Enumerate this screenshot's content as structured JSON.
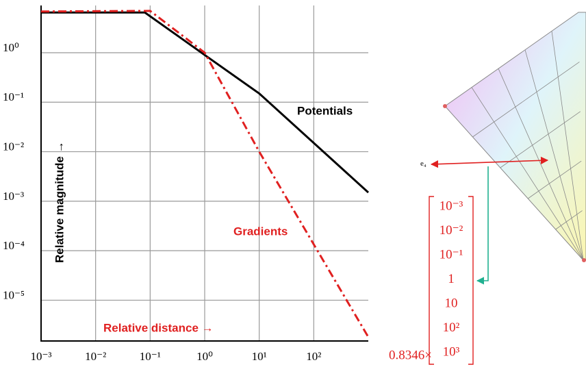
{
  "chart_data": {
    "type": "line",
    "xlabel": "Relative distance →",
    "ylabel": "Relative magnitude →",
    "xscale": "log",
    "yscale": "log",
    "grid": true,
    "xlim": [
      0.001,
      1000
    ],
    "ylim": [
      1.5e-06,
      9
    ],
    "xticks": [
      {
        "value": 0.001,
        "label": "10⁻³"
      },
      {
        "value": 0.01,
        "label": "10⁻²"
      },
      {
        "value": 0.1,
        "label": "10⁻¹"
      },
      {
        "value": 1,
        "label": "10⁰"
      },
      {
        "value": 10,
        "label": "10¹"
      },
      {
        "value": 100,
        "label": "10²"
      }
    ],
    "yticks": [
      {
        "value": 1,
        "label": "10⁰"
      },
      {
        "value": 0.1,
        "label": "10⁻¹"
      },
      {
        "value": 0.01,
        "label": "10⁻²"
      },
      {
        "value": 0.001,
        "label": "10⁻³"
      },
      {
        "value": 0.0001,
        "label": "10⁻⁴"
      },
      {
        "value": 1e-05,
        "label": "10⁻⁵"
      }
    ],
    "series": [
      {
        "name": "Potentials",
        "color": "#000000",
        "dash": "solid",
        "x": [
          0.001,
          0.08,
          1,
          10,
          1000
        ],
        "values": [
          6.5,
          6.5,
          0.9,
          0.15,
          0.0015
        ]
      },
      {
        "name": "Gradients",
        "color": "#e02020",
        "dash": "dashdot",
        "x": [
          0.001,
          0.1,
          1,
          10,
          1000
        ],
        "values": [
          6.8,
          7,
          1,
          0.01,
          1.8e-06
        ]
      }
    ]
  },
  "diagram": {
    "point_label": "e₄",
    "scale_label": "0.8346×",
    "matrix": [
      "10⁻³",
      "10⁻²",
      "10⁻¹",
      "1",
      "10",
      "10²",
      "10³"
    ]
  }
}
